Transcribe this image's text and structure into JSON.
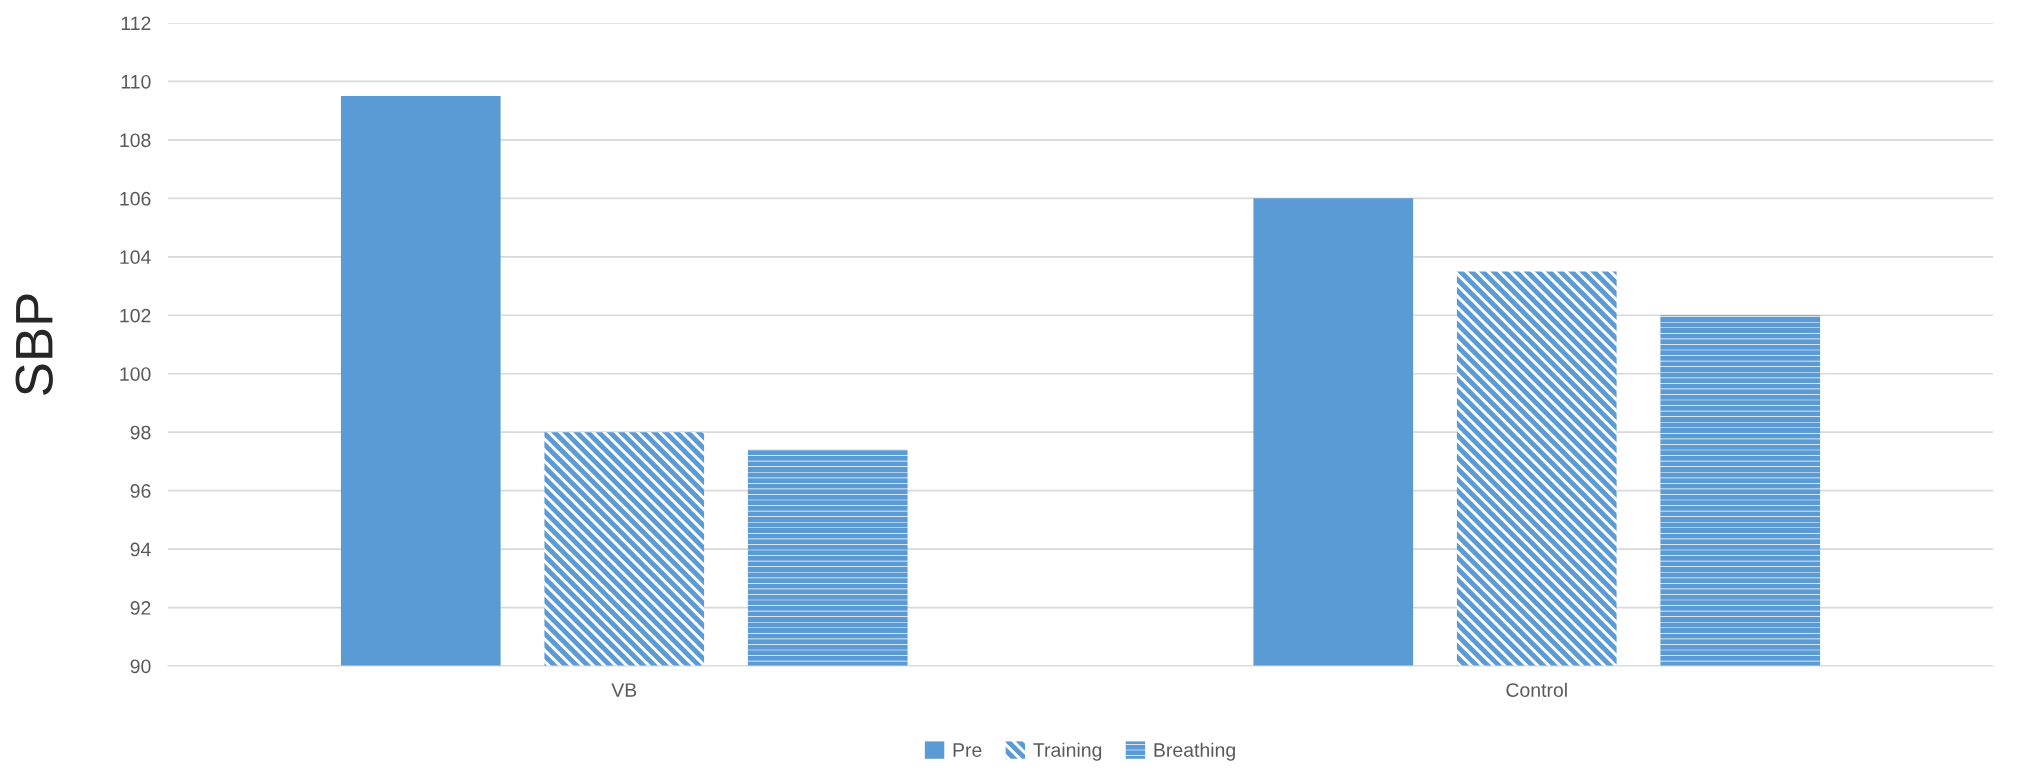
{
  "chart_data": {
    "type": "bar",
    "ylabel": "SBP",
    "categories": [
      "VB",
      "Control"
    ],
    "series": [
      {
        "name": "Pre",
        "color": "#5b9bd5",
        "values": [
          109.5,
          106
        ]
      },
      {
        "name": "Training",
        "color": "#5b9bd5",
        "values": [
          98,
          103.5
        ]
      },
      {
        "name": "Breathing",
        "color": "#5b9bd5",
        "values": [
          97.4,
          102
        ]
      }
    ],
    "ylim": [
      90,
      112
    ],
    "yticks": [
      90,
      92,
      94,
      96,
      98,
      100,
      102,
      104,
      106,
      108,
      110,
      112
    ],
    "grid": "y",
    "legend": "bottom"
  }
}
